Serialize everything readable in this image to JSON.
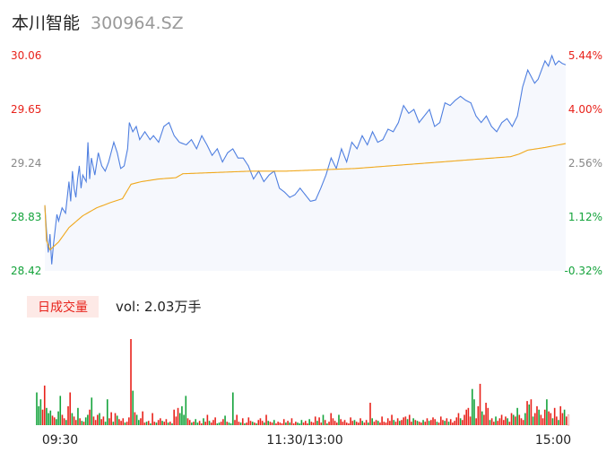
{
  "header": {
    "name": "本川智能",
    "code": "300964.SZ"
  },
  "volume_panel": {
    "badge": "日成交量",
    "vol_label": "vol: 2.03万手"
  },
  "colors": {
    "up": "#e8221b",
    "down": "#14a33b",
    "price_line": "#4f7fe0",
    "avg_line": "#f0a81c",
    "area_fill": "#f6f8fd",
    "badge_bg": "#fde9e6",
    "text_dark": "#222222",
    "text_gray": "#999999",
    "axis_gray": "#888888"
  },
  "chart_data": [
    {
      "type": "line",
      "title": "",
      "series": [
        {
          "name": "price",
          "color": "#4f7fe0"
        },
        {
          "name": "average",
          "color": "#f0a81c"
        }
      ],
      "price_ticks": [
        "30.06",
        "29.65",
        "29.24",
        "28.83",
        "28.42"
      ],
      "pct_ticks": [
        "5.44%",
        "4.00%",
        "2.56%",
        "1.12%",
        "-0.32%"
      ],
      "tick_colors": [
        "#e8221b",
        "#e8221b",
        "#888888",
        "#14a33b",
        "#14a33b"
      ],
      "ylim": [
        28.42,
        30.06
      ],
      "open_price": 28.51,
      "price_keyframes": [
        [
          0,
          28.92
        ],
        [
          1,
          28.72
        ],
        [
          2,
          28.56
        ],
        [
          3,
          28.7
        ],
        [
          4,
          28.47
        ],
        [
          5,
          28.62
        ],
        [
          7,
          28.85
        ],
        [
          8,
          28.8
        ],
        [
          10,
          28.9
        ],
        [
          12,
          28.86
        ],
        [
          14,
          29.1
        ],
        [
          15,
          28.95
        ],
        [
          16,
          29.18
        ],
        [
          17,
          29.05
        ],
        [
          18,
          28.98
        ],
        [
          19,
          29.12
        ],
        [
          20,
          29.22
        ],
        [
          21,
          29.05
        ],
        [
          22,
          29.15
        ],
        [
          24,
          29.1
        ],
        [
          25,
          29.4
        ],
        [
          26,
          29.12
        ],
        [
          27,
          29.28
        ],
        [
          29,
          29.15
        ],
        [
          31,
          29.32
        ],
        [
          33,
          29.22
        ],
        [
          35,
          29.18
        ],
        [
          37,
          29.25
        ],
        [
          40,
          29.4
        ],
        [
          42,
          29.32
        ],
        [
          44,
          29.2
        ],
        [
          46,
          29.22
        ],
        [
          48,
          29.35
        ],
        [
          49,
          29.55
        ],
        [
          51,
          29.48
        ],
        [
          53,
          29.52
        ],
        [
          55,
          29.42
        ],
        [
          58,
          29.48
        ],
        [
          61,
          29.42
        ],
        [
          63,
          29.45
        ],
        [
          66,
          29.4
        ],
        [
          69,
          29.52
        ],
        [
          72,
          29.55
        ],
        [
          75,
          29.45
        ],
        [
          78,
          29.4
        ],
        [
          82,
          29.38
        ],
        [
          85,
          29.42
        ],
        [
          88,
          29.35
        ],
        [
          91,
          29.45
        ],
        [
          94,
          29.38
        ],
        [
          97,
          29.3
        ],
        [
          100,
          29.35
        ],
        [
          103,
          29.25
        ],
        [
          106,
          29.32
        ],
        [
          109,
          29.35
        ],
        [
          112,
          29.28
        ],
        [
          115,
          29.28
        ],
        [
          118,
          29.22
        ],
        [
          121,
          29.12
        ],
        [
          124,
          29.18
        ],
        [
          127,
          29.1
        ],
        [
          130,
          29.15
        ],
        [
          133,
          29.18
        ],
        [
          136,
          29.05
        ],
        [
          139,
          29.02
        ],
        [
          142,
          28.98
        ],
        [
          145,
          29.0
        ],
        [
          148,
          29.05
        ],
        [
          151,
          29.0
        ],
        [
          154,
          28.95
        ],
        [
          157,
          28.96
        ],
        [
          160,
          29.05
        ],
        [
          163,
          29.15
        ],
        [
          166,
          29.28
        ],
        [
          169,
          29.2
        ],
        [
          172,
          29.35
        ],
        [
          175,
          29.25
        ],
        [
          178,
          29.4
        ],
        [
          181,
          29.35
        ],
        [
          184,
          29.45
        ],
        [
          187,
          29.38
        ],
        [
          190,
          29.48
        ],
        [
          193,
          29.4
        ],
        [
          196,
          29.42
        ],
        [
          199,
          29.5
        ],
        [
          202,
          29.48
        ],
        [
          205,
          29.55
        ],
        [
          208,
          29.68
        ],
        [
          211,
          29.62
        ],
        [
          214,
          29.65
        ],
        [
          217,
          29.55
        ],
        [
          220,
          29.6
        ],
        [
          223,
          29.65
        ],
        [
          226,
          29.52
        ],
        [
          229,
          29.55
        ],
        [
          232,
          29.7
        ],
        [
          235,
          29.68
        ],
        [
          238,
          29.72
        ],
        [
          241,
          29.75
        ],
        [
          244,
          29.72
        ],
        [
          247,
          29.7
        ],
        [
          250,
          29.6
        ],
        [
          253,
          29.55
        ],
        [
          256,
          29.6
        ],
        [
          259,
          29.52
        ],
        [
          262,
          29.48
        ],
        [
          265,
          29.55
        ],
        [
          268,
          29.58
        ],
        [
          271,
          29.52
        ],
        [
          274,
          29.6
        ],
        [
          277,
          29.82
        ],
        [
          280,
          29.95
        ],
        [
          282,
          29.9
        ],
        [
          284,
          29.85
        ],
        [
          286,
          29.88
        ],
        [
          288,
          29.95
        ],
        [
          290,
          30.02
        ],
        [
          292,
          29.98
        ],
        [
          294,
          30.06
        ],
        [
          296,
          29.99
        ],
        [
          298,
          30.02
        ],
        [
          300,
          30.0
        ],
        [
          302,
          29.99
        ]
      ],
      "avg_keyframes": [
        [
          0,
          28.92
        ],
        [
          1,
          28.65
        ],
        [
          3,
          28.58
        ],
        [
          8,
          28.64
        ],
        [
          14,
          28.75
        ],
        [
          22,
          28.84
        ],
        [
          30,
          28.9
        ],
        [
          38,
          28.94
        ],
        [
          45,
          28.97
        ],
        [
          50,
          29.08
        ],
        [
          56,
          29.1
        ],
        [
          66,
          29.12
        ],
        [
          76,
          29.13
        ],
        [
          80,
          29.16
        ],
        [
          100,
          29.17
        ],
        [
          120,
          29.18
        ],
        [
          140,
          29.18
        ],
        [
          160,
          29.19
        ],
        [
          180,
          29.2
        ],
        [
          200,
          29.22
        ],
        [
          220,
          29.24
        ],
        [
          240,
          29.26
        ],
        [
          260,
          29.28
        ],
        [
          270,
          29.29
        ],
        [
          275,
          29.31
        ],
        [
          280,
          29.34
        ],
        [
          290,
          29.36
        ],
        [
          302,
          29.39
        ]
      ],
      "x_ticks": [
        "09:30",
        "11:30/13:00",
        "15:00"
      ],
      "x_tick_indices": [
        0,
        120,
        240
      ],
      "xlim": [
        0,
        302
      ]
    },
    {
      "type": "bar",
      "title": "",
      "series": [
        {
          "name": "volume",
          "colors": [
            "#e8221b",
            "#14a33b"
          ]
        }
      ],
      "ylim": [
        0,
        100
      ],
      "volumes": [
        38,
        22,
        30,
        18,
        46,
        20,
        14,
        17,
        11,
        9,
        7,
        16,
        34,
        12,
        8,
        6,
        22,
        38,
        14,
        10,
        6,
        20,
        8,
        5,
        4,
        9,
        12,
        18,
        32,
        10,
        6,
        12,
        14,
        7,
        10,
        4,
        30,
        8,
        15,
        4,
        14,
        11,
        7,
        5,
        8,
        3,
        4,
        9,
        100,
        40,
        15,
        12,
        6,
        8,
        16,
        3,
        4,
        5,
        2,
        14,
        4,
        3,
        6,
        8,
        5,
        4,
        7,
        3,
        4,
        2,
        18,
        10,
        20,
        14,
        22,
        12,
        34,
        8,
        6,
        3,
        4,
        7,
        3,
        5,
        2,
        8,
        4,
        12,
        5,
        3,
        6,
        9,
        2,
        3,
        4,
        7,
        11,
        4,
        3,
        2,
        38,
        6,
        12,
        4,
        3,
        8,
        2,
        3,
        9,
        5,
        4,
        3,
        2,
        6,
        8,
        5,
        3,
        12,
        5,
        4,
        3,
        6,
        2,
        4,
        3,
        2,
        7,
        3,
        5,
        3,
        8,
        2,
        4,
        3,
        2,
        6,
        3,
        5,
        2,
        7,
        4,
        3,
        10,
        5,
        9,
        3,
        12,
        6,
        2,
        4,
        14,
        8,
        5,
        3,
        12,
        7,
        4,
        6,
        3,
        2,
        9,
        5,
        6,
        4,
        3,
        8,
        5,
        3,
        6,
        3,
        26,
        8,
        4,
        6,
        5,
        3,
        10,
        4,
        3,
        8,
        5,
        12,
        6,
        4,
        8,
        5,
        6,
        9,
        10,
        7,
        12,
        4,
        8,
        6,
        5,
        4,
        3,
        6,
        4,
        8,
        5,
        6,
        9,
        7,
        4,
        3,
        10,
        6,
        5,
        8,
        4,
        7,
        3,
        5,
        9,
        14,
        8,
        6,
        12,
        18,
        20,
        10,
        42,
        30,
        8,
        22,
        48,
        16,
        12,
        26,
        20,
        6,
        8,
        4,
        10,
        5,
        8,
        12,
        6,
        10,
        8,
        4,
        14,
        12,
        10,
        20,
        12,
        8,
        6,
        14,
        28,
        24,
        30,
        10,
        14,
        22,
        18,
        12,
        8,
        18,
        30,
        16,
        14,
        8,
        20,
        10,
        6,
        22,
        14,
        18,
        10,
        12
      ],
      "directions": [
        "d",
        "d",
        "d",
        "u",
        "u",
        "d",
        "d",
        "d",
        "u",
        "u",
        "d",
        "d",
        "d",
        "u",
        "u",
        "d",
        "u",
        "u",
        "d",
        "u",
        "u",
        "d",
        "u",
        "d",
        "u",
        "d",
        "d",
        "u",
        "d",
        "u",
        "u",
        "u",
        "d",
        "u",
        "u",
        "d",
        "d",
        "u",
        "u",
        "d",
        "u",
        "d",
        "u",
        "u",
        "u",
        "d",
        "u",
        "u",
        "u",
        "d",
        "u",
        "d",
        "d",
        "u",
        "u",
        "u",
        "d",
        "u",
        "d",
        "u",
        "u",
        "d",
        "u",
        "u",
        "d",
        "u",
        "u",
        "d",
        "u",
        "d",
        "u",
        "u",
        "u",
        "d",
        "d",
        "d",
        "d",
        "u",
        "u",
        "d",
        "u",
        "d",
        "d",
        "u",
        "u",
        "d",
        "u",
        "u",
        "d",
        "u",
        "u",
        "u",
        "d",
        "d",
        "u",
        "u",
        "d",
        "u",
        "d",
        "d",
        "d",
        "u",
        "u",
        "u",
        "d",
        "u",
        "d",
        "u",
        "u",
        "u",
        "d",
        "u",
        "d",
        "u",
        "u",
        "u",
        "d",
        "u",
        "d",
        "u",
        "u",
        "d",
        "u",
        "u",
        "u",
        "u",
        "u",
        "d",
        "u",
        "d",
        "u",
        "u",
        "u",
        "d",
        "d",
        "d",
        "u",
        "u",
        "u",
        "d",
        "u",
        "u",
        "u",
        "d",
        "u",
        "u",
        "d",
        "u",
        "d",
        "u",
        "u",
        "u",
        "u",
        "u",
        "d",
        "u",
        "u",
        "u",
        "u",
        "u",
        "u",
        "u",
        "d",
        "u",
        "u",
        "u",
        "d",
        "u",
        "u",
        "d",
        "u",
        "d",
        "u",
        "u",
        "d",
        "u",
        "u",
        "u",
        "u",
        "u",
        "u",
        "u",
        "d",
        "u",
        "u",
        "d",
        "u",
        "u",
        "u",
        "d",
        "u",
        "u",
        "d",
        "u",
        "d",
        "u",
        "u",
        "d",
        "u",
        "u",
        "d",
        "u",
        "u",
        "u",
        "d",
        "u",
        "u",
        "u",
        "d",
        "u",
        "d",
        "u",
        "u",
        "u",
        "u",
        "u",
        "d",
        "u",
        "u",
        "u",
        "u",
        "u",
        "d",
        "d",
        "u",
        "u",
        "u",
        "d",
        "u",
        "u",
        "u",
        "d",
        "u",
        "u",
        "d",
        "u",
        "u",
        "u",
        "u",
        "u",
        "d",
        "u",
        "u",
        "d",
        "u",
        "d",
        "u",
        "u",
        "u",
        "d",
        "u",
        "d",
        "u",
        "d",
        "u",
        "u",
        "d",
        "u",
        "u",
        "u",
        "d",
        "u",
        "u",
        "d",
        "u",
        "u",
        "d",
        "u",
        "u",
        "d",
        "u",
        "u"
      ],
      "last_bar_style": "hollow"
    }
  ]
}
